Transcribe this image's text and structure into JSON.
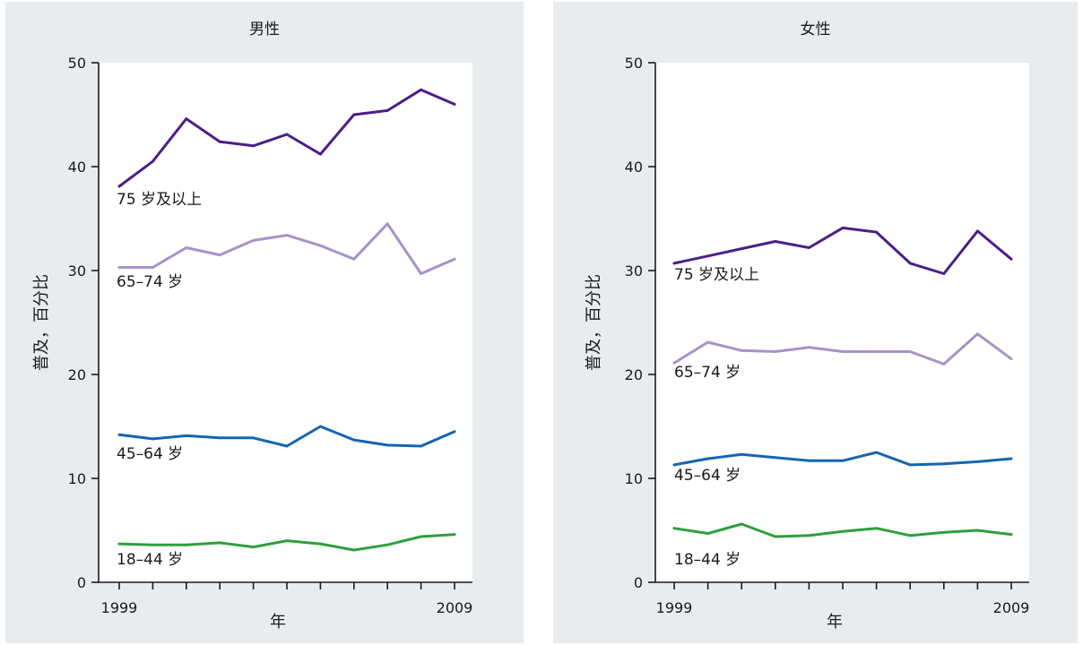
{
  "chart_data": [
    {
      "type": "line",
      "title": "男性",
      "xlabel": "年",
      "ylabel": "普及，百分比",
      "x": [
        1999,
        2000,
        2001,
        2002,
        2003,
        2004,
        2005,
        2006,
        2007,
        2008,
        2009
      ],
      "x_tick_labels": [
        "1999",
        "2009"
      ],
      "ylim": [
        0,
        50
      ],
      "y_ticks": [
        0,
        10,
        20,
        30,
        40,
        50
      ],
      "series": [
        {
          "name": "75 岁及以上",
          "color": "#4b1f87",
          "values": [
            38.1,
            40.5,
            44.6,
            42.4,
            42.0,
            43.1,
            41.2,
            45.0,
            45.4,
            47.4,
            46.0
          ]
        },
        {
          "name": "65–74 岁",
          "color": "#a693c8",
          "values": [
            30.3,
            30.3,
            32.2,
            31.5,
            32.9,
            33.4,
            32.4,
            31.1,
            34.5,
            29.7,
            31.1
          ]
        },
        {
          "name": "45–64 岁",
          "color": "#1565b0",
          "values": [
            14.2,
            13.8,
            14.1,
            13.9,
            13.9,
            13.1,
            15.0,
            13.7,
            13.2,
            13.1,
            14.5
          ]
        },
        {
          "name": "18–44 岁",
          "color": "#2e9f3e",
          "values": [
            3.7,
            3.6,
            3.6,
            3.8,
            3.4,
            4.0,
            3.7,
            3.1,
            3.6,
            4.4,
            4.6
          ]
        }
      ]
    },
    {
      "type": "line",
      "title": "女性",
      "xlabel": "年",
      "ylabel": "普及，百分比",
      "x": [
        1999,
        2000,
        2001,
        2002,
        2003,
        2004,
        2005,
        2006,
        2007,
        2008,
        2009
      ],
      "x_tick_labels": [
        "1999",
        "2009"
      ],
      "ylim": [
        0,
        50
      ],
      "y_ticks": [
        0,
        10,
        20,
        30,
        40,
        50
      ],
      "series": [
        {
          "name": "75 岁及以上",
          "color": "#4b1f87",
          "values": [
            30.7,
            31.4,
            32.1,
            32.8,
            32.2,
            34.1,
            33.7,
            30.7,
            29.7,
            33.8,
            31.1
          ]
        },
        {
          "name": "65–74 岁",
          "color": "#a693c8",
          "values": [
            21.1,
            23.1,
            22.3,
            22.2,
            22.6,
            22.2,
            22.2,
            22.2,
            21.0,
            23.9,
            21.5
          ]
        },
        {
          "name": "45–64 岁",
          "color": "#1565b0",
          "values": [
            11.3,
            11.9,
            12.3,
            12.0,
            11.7,
            11.7,
            12.5,
            11.3,
            11.4,
            11.6,
            11.9
          ]
        },
        {
          "name": "18–44 岁",
          "color": "#2e9f3e",
          "values": [
            5.2,
            4.7,
            5.6,
            4.4,
            4.5,
            4.9,
            5.2,
            4.5,
            4.8,
            5.0,
            4.6
          ]
        }
      ]
    }
  ]
}
